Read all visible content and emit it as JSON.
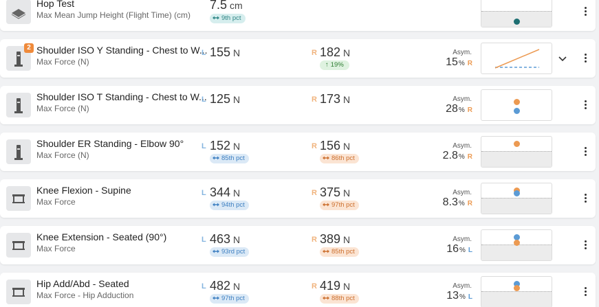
{
  "asym_label": "Asym.",
  "rows": [
    {
      "title": "Hop Test",
      "subtitle": "Max Mean Jump Height (Flight Time) (cm)",
      "value": 7.5,
      "unit": "cm",
      "pct": "9th pct"
    },
    {
      "badge": "2",
      "title": "Shoulder ISO Y Standing - Chest to W...",
      "subtitle": "Max Force (N)",
      "left": {
        "side": "L",
        "value": 155,
        "unit": "N"
      },
      "right": {
        "side": "R",
        "value": 182,
        "unit": "N",
        "change": "19%"
      },
      "asym": {
        "value": 15,
        "unit": "%",
        "side": "R"
      }
    },
    {
      "title": "Shoulder ISO T Standing - Chest to W...",
      "subtitle": "Max Force (N)",
      "left": {
        "side": "L",
        "value": 125,
        "unit": "N"
      },
      "right": {
        "side": "R",
        "value": 173,
        "unit": "N"
      },
      "asym": {
        "value": 28,
        "unit": "%",
        "side": "R"
      }
    },
    {
      "title": "Shoulder ER Standing - Elbow 90°",
      "subtitle": "Max Force (N)",
      "left": {
        "side": "L",
        "value": 152,
        "unit": "N",
        "pct": "85th pct"
      },
      "right": {
        "side": "R",
        "value": 156,
        "unit": "N",
        "pct": "86th pct"
      },
      "asym": {
        "value": 2.8,
        "unit": "%",
        "side": "R"
      }
    },
    {
      "title": "Knee Flexion - Supine",
      "subtitle": "Max Force",
      "left": {
        "side": "L",
        "value": 344,
        "unit": "N",
        "pct": "94th pct"
      },
      "right": {
        "side": "R",
        "value": 375,
        "unit": "N",
        "pct": "97th pct"
      },
      "asym": {
        "value": 8.3,
        "unit": "%",
        "side": "R"
      }
    },
    {
      "title": "Knee Extension - Seated (90°)",
      "subtitle": "Max Force",
      "left": {
        "side": "L",
        "value": 463,
        "unit": "N",
        "pct": "93rd pct"
      },
      "right": {
        "side": "R",
        "value": 389,
        "unit": "N",
        "pct": "85th pct"
      },
      "asym": {
        "value": 16,
        "unit": "%",
        "side": "L"
      }
    },
    {
      "title": "Hip Add/Abd - Seated",
      "subtitle": "Max Force - Hip Adduction",
      "left": {
        "side": "L",
        "value": 482,
        "unit": "N",
        "pct": "97th pct"
      },
      "right": {
        "side": "R",
        "value": 419,
        "unit": "N",
        "pct": "88th pct"
      },
      "asym": {
        "value": 13,
        "unit": "%",
        "side": "L"
      }
    }
  ]
}
